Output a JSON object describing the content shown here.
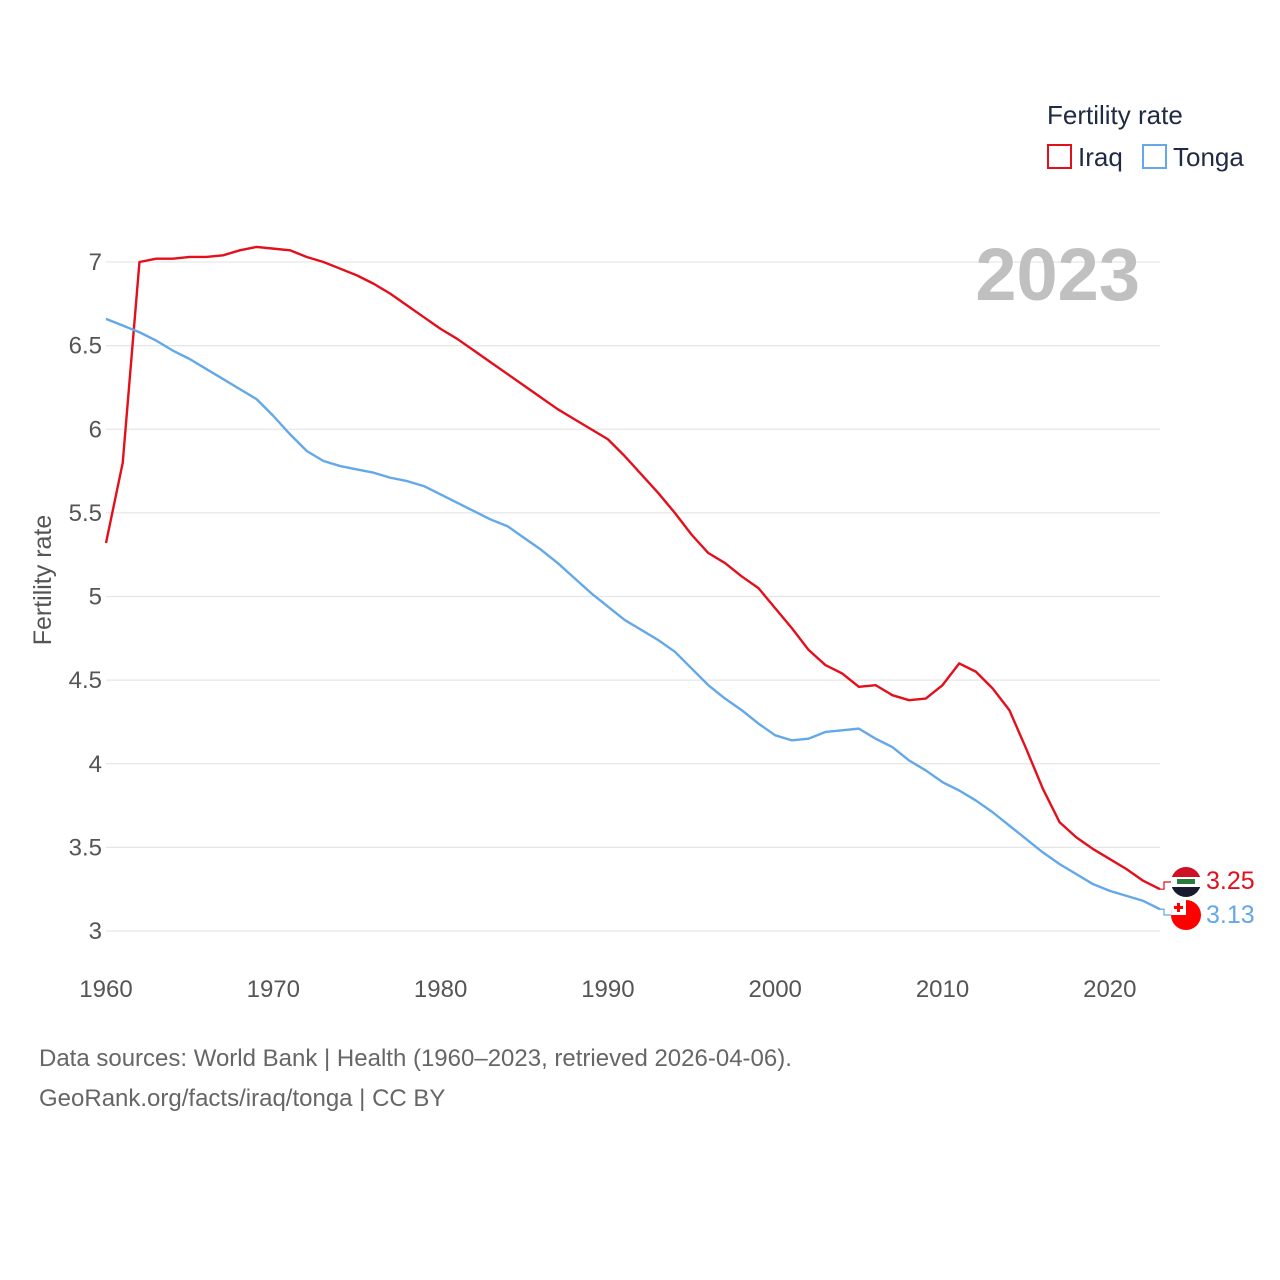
{
  "chart_data": {
    "type": "line",
    "year_label": "2023",
    "ylabel": "Fertility rate",
    "xlabel": "",
    "xlim": [
      1960,
      2023
    ],
    "ylim": [
      3,
      7
    ],
    "x_ticks": [
      1960,
      1970,
      1980,
      1990,
      2000,
      2010,
      2020
    ],
    "y_ticks": [
      3,
      3.5,
      4,
      4.5,
      5,
      5.5,
      6,
      6.5,
      7
    ],
    "y_tick_labels": [
      "3",
      "3.5",
      "4",
      "4.5",
      "5",
      "5.5",
      "6",
      "6.5",
      "7"
    ],
    "x_tick_labels": [
      "1960",
      "1970",
      "1980",
      "1990",
      "2000",
      "2010",
      "2020"
    ],
    "legend": {
      "title": "Fertility rate",
      "position": "top-right"
    },
    "x": [
      1960,
      1961,
      1962,
      1963,
      1964,
      1965,
      1966,
      1967,
      1968,
      1969,
      1970,
      1971,
      1972,
      1973,
      1974,
      1975,
      1976,
      1977,
      1978,
      1979,
      1980,
      1981,
      1982,
      1983,
      1984,
      1985,
      1986,
      1987,
      1988,
      1989,
      1990,
      1991,
      1992,
      1993,
      1994,
      1995,
      1996,
      1997,
      1998,
      1999,
      2000,
      2001,
      2002,
      2003,
      2004,
      2005,
      2006,
      2007,
      2008,
      2009,
      2010,
      2011,
      2012,
      2013,
      2014,
      2015,
      2016,
      2017,
      2018,
      2019,
      2020,
      2021,
      2022,
      2023
    ],
    "series": [
      {
        "name": "Iraq",
        "color": "#e3101c",
        "end_label": "3.25",
        "values": [
          5.32,
          5.8,
          7.0,
          7.02,
          7.02,
          7.03,
          7.03,
          7.04,
          7.07,
          7.09,
          7.08,
          7.07,
          7.03,
          7.0,
          6.96,
          6.92,
          6.87,
          6.81,
          6.74,
          6.67,
          6.6,
          6.54,
          6.47,
          6.4,
          6.33,
          6.26,
          6.19,
          6.12,
          6.06,
          6.0,
          5.94,
          5.84,
          5.73,
          5.62,
          5.5,
          5.37,
          5.26,
          5.2,
          5.12,
          5.05,
          4.93,
          4.81,
          4.68,
          4.59,
          4.54,
          4.46,
          4.47,
          4.41,
          4.38,
          4.39,
          4.47,
          4.6,
          4.55,
          4.45,
          4.32,
          4.09,
          3.85,
          3.65,
          3.56,
          3.49,
          3.43,
          3.37,
          3.3,
          3.25
        ]
      },
      {
        "name": "Tonga",
        "color": "#63a8e8",
        "end_label": "3.13",
        "values": [
          6.66,
          6.62,
          6.58,
          6.53,
          6.47,
          6.42,
          6.36,
          6.3,
          6.24,
          6.18,
          6.08,
          5.97,
          5.87,
          5.81,
          5.78,
          5.76,
          5.74,
          5.71,
          5.69,
          5.66,
          5.61,
          5.56,
          5.51,
          5.46,
          5.42,
          5.35,
          5.28,
          5.2,
          5.11,
          5.02,
          4.94,
          4.86,
          4.8,
          4.74,
          4.67,
          4.57,
          4.47,
          4.39,
          4.32,
          4.24,
          4.17,
          4.14,
          4.15,
          4.19,
          4.2,
          4.21,
          4.15,
          4.1,
          4.02,
          3.96,
          3.89,
          3.84,
          3.78,
          3.71,
          3.63,
          3.55,
          3.47,
          3.4,
          3.34,
          3.28,
          3.24,
          3.21,
          3.18,
          3.13
        ]
      }
    ]
  },
  "footer": {
    "line1": "Data sources: World Bank | Health (1960–2023, retrieved 2026-04-06).",
    "line2": "GeoRank.org/facts/iraq/tonga | CC BY"
  },
  "colors": {
    "grid": "#e6e6e6",
    "tick_text": "#555555",
    "year_label": "#c0c0c0",
    "flag_iraq_red": "#ce1126",
    "flag_iraq_black": "#1a1a2e",
    "flag_tonga_red": "#ff0000"
  }
}
